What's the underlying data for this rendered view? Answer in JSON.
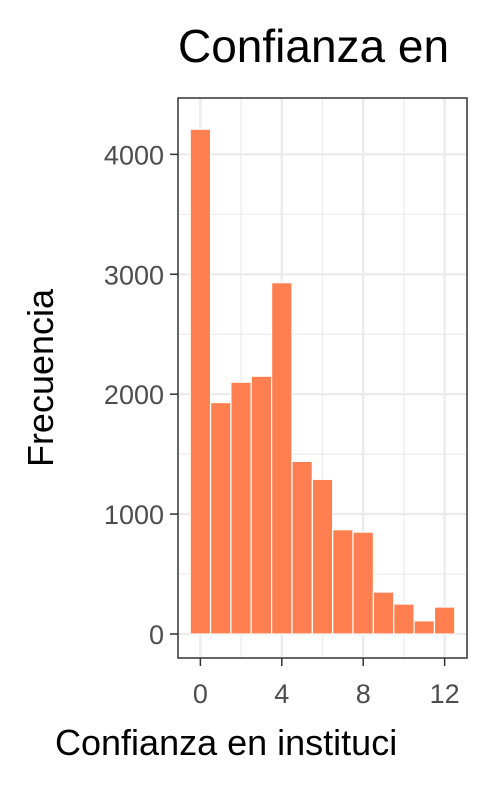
{
  "chart_data": {
    "type": "bar",
    "title": "Confianza en",
    "xlabel": "Confianza en instituci",
    "ylabel": "Frecuencia",
    "x": [
      0,
      1,
      2,
      3,
      4,
      5,
      6,
      7,
      8,
      9,
      10,
      11,
      12
    ],
    "values": [
      4210,
      1930,
      2100,
      2150,
      2930,
      1440,
      1290,
      870,
      850,
      350,
      250,
      110,
      225
    ],
    "xlim": [
      -1.1,
      13.1
    ],
    "ylim": [
      -200,
      4470
    ],
    "xticks": [
      0,
      4,
      8,
      12
    ],
    "xtick_labels": [
      "0",
      "4",
      "8",
      "12"
    ],
    "yticks": [
      0,
      1000,
      2000,
      3000,
      4000
    ],
    "ytick_labels": [
      "0",
      "1000",
      "2000",
      "3000",
      "4000"
    ],
    "grid": true,
    "bar_color": "#FF7F50",
    "panel_border_color": "#333333",
    "grid_color": "#EBEBEB"
  }
}
